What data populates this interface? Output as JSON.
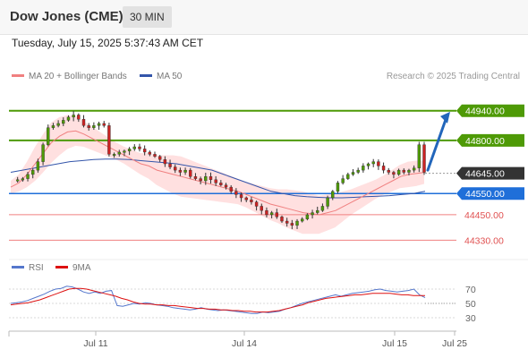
{
  "header": {
    "title": "Dow Jones (CME)",
    "timeframe": "30 MIN"
  },
  "datetime": "Tuesday, July 15, 2025 5:37:43 AM CET",
  "legend": {
    "ma20": "MA 20 + Bollinger Bands",
    "ma50": "MA 50",
    "rsi": "RSI",
    "ma9": "9MA"
  },
  "credit": "Research © 2025 Trading Central",
  "colors": {
    "resistance": "#4e9a06",
    "current": "#333333",
    "support_main": "#1f6fd9",
    "support": "#f08080",
    "ma20": "#f08080",
    "ma50": "#3355aa",
    "rsi": "#5577cc",
    "ma9": "#dd1111",
    "bands": "#ffd6d6",
    "up": "#4e9a06",
    "down": "#cc2222",
    "arrow": "#2266bb"
  },
  "chart_data": [
    {
      "type": "candlestick",
      "title": "Dow Jones (CME)",
      "y_range": [
        44260,
        45040
      ],
      "levels": [
        {
          "value": 44940.0,
          "label": "44940.00",
          "kind": "resistance"
        },
        {
          "value": 44800.0,
          "label": "44800.00",
          "kind": "resistance"
        },
        {
          "value": 44645.0,
          "label": "44645.00",
          "kind": "current"
        },
        {
          "value": 44550.0,
          "label": "44550.00",
          "kind": "support_main"
        },
        {
          "value": 44450.0,
          "label": "44450.00",
          "kind": "support"
        },
        {
          "value": 44330.0,
          "label": "44330.00",
          "kind": "support"
        }
      ],
      "forecast_arrow": {
        "from": 44660,
        "to": 44935,
        "direction": "up"
      },
      "x_ticks": [
        "Jul 11",
        "Jul 14",
        "Jul 15",
        "Jul 25"
      ],
      "price": [
        44615,
        44615,
        44620,
        44640,
        44660,
        44700,
        44780,
        44860,
        44870,
        44880,
        44895,
        44910,
        44920,
        44900,
        44870,
        44860,
        44870,
        44880,
        44870,
        44735,
        44735,
        44745,
        44750,
        44760,
        44770,
        44760,
        44745,
        44735,
        44725,
        44710,
        44690,
        44675,
        44660,
        44650,
        44660,
        44630,
        44620,
        44610,
        44630,
        44615,
        44600,
        44590,
        44580,
        44560,
        44545,
        44530,
        44520,
        44510,
        44490,
        44470,
        44450,
        44460,
        44440,
        44420,
        44410,
        44400,
        44420,
        44430,
        44450,
        44460,
        44470,
        44490,
        44530,
        44560,
        44600,
        44620,
        44640,
        44650,
        44660,
        44680,
        44690,
        44700,
        44680,
        44660,
        44650,
        44640,
        44660,
        44650,
        44660,
        44670,
        44780,
        44650
      ],
      "ma20": [
        44580,
        44600,
        44640,
        44690,
        44740,
        44790,
        44820,
        44840,
        44845,
        44830,
        44810,
        44790,
        44770,
        44750,
        44730,
        44710,
        44690,
        44680,
        44660,
        44650,
        44640,
        44630,
        44620,
        44610,
        44600,
        44590,
        44580,
        44570,
        44560,
        44545,
        44530,
        44515,
        44500,
        44490,
        44480,
        44470,
        44460,
        44455,
        44450,
        44460,
        44470,
        44490,
        44510,
        44530,
        44550,
        44570,
        44590,
        44610,
        44630,
        44640,
        44645,
        44650
      ],
      "ma50": [
        44650,
        44660,
        44670,
        44680,
        44690,
        44700,
        44705,
        44710,
        44712,
        44712,
        44710,
        44705,
        44700,
        44695,
        44690,
        44680,
        44670,
        44660,
        44640,
        44620,
        44600,
        44580,
        44560,
        44550,
        44540,
        44535,
        44532,
        44530,
        44530,
        44532,
        44535,
        44537,
        44540,
        44545,
        44550,
        44560
      ]
    },
    {
      "type": "line",
      "series": [
        {
          "name": "RSI",
          "values": [
            50,
            51,
            52,
            54,
            57,
            60,
            63,
            67,
            70,
            71,
            74,
            73,
            70,
            66,
            64,
            66,
            64,
            67,
            68,
            47,
            46,
            48,
            50,
            49,
            51,
            50,
            48,
            47,
            46,
            44,
            43,
            42,
            41,
            42,
            44,
            42,
            41,
            40,
            41,
            40,
            39,
            38,
            37,
            36,
            36,
            38,
            37,
            38,
            39,
            42,
            44,
            47,
            50,
            52,
            54,
            56,
            58,
            60,
            62,
            60,
            62,
            64,
            65,
            66,
            67,
            69,
            70,
            68,
            67,
            66,
            67,
            68,
            70,
            62,
            58
          ]
        },
        {
          "name": "9MA",
          "values": [
            48,
            49,
            50,
            51,
            53,
            55,
            58,
            61,
            64,
            67,
            70,
            71,
            71,
            70,
            68,
            66,
            64,
            62,
            60,
            57,
            55,
            52,
            50,
            49,
            49,
            48,
            48,
            47,
            47,
            46,
            45,
            44,
            43,
            43,
            42,
            42,
            41,
            41,
            40,
            40,
            39,
            39,
            38,
            38,
            38,
            39,
            40,
            42,
            44,
            46,
            48,
            51,
            53,
            55,
            57,
            58,
            59,
            60,
            61,
            62,
            62,
            63,
            64,
            64,
            64,
            64,
            63,
            62,
            62,
            61,
            61,
            61
          ]
        }
      ],
      "y_ticks": [
        "70",
        "50",
        "30"
      ],
      "y_range": [
        20,
        80
      ]
    }
  ]
}
